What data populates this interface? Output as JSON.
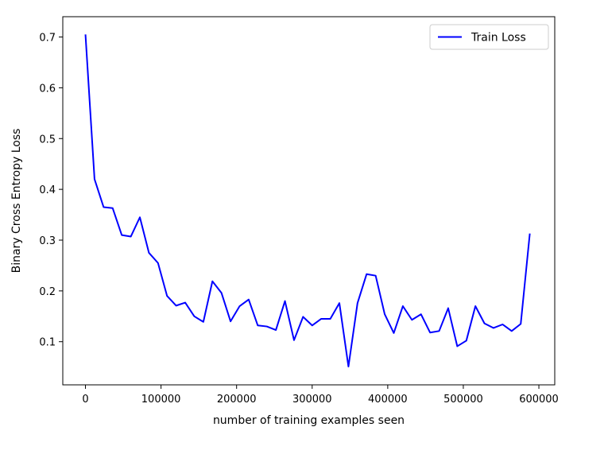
{
  "chart_data": {
    "type": "line",
    "title": "",
    "xlabel": "number of training examples seen",
    "ylabel": "Binary Cross Entropy Loss",
    "xlim": [
      -30000,
      621000
    ],
    "ylim": [
      0.015,
      0.74
    ],
    "xticks": [
      0,
      100000,
      200000,
      300000,
      400000,
      500000,
      600000
    ],
    "yticks": [
      0.1,
      0.2,
      0.3,
      0.4,
      0.5,
      0.6,
      0.7
    ],
    "grid": false,
    "legend_position": "top-right",
    "series": [
      {
        "name": "Train Loss",
        "color": "#0000ff",
        "x": [
          0,
          12000,
          24000,
          36000,
          48000,
          60000,
          72000,
          84000,
          96000,
          108000,
          120000,
          132000,
          144000,
          156000,
          168000,
          180000,
          192000,
          204000,
          216000,
          228000,
          240000,
          252000,
          264000,
          276000,
          288000,
          300000,
          312000,
          324000,
          336000,
          348000,
          360000,
          372000,
          384000,
          396000,
          408000,
          420000,
          432000,
          444000,
          456000,
          468000,
          480000,
          492000,
          504000,
          516000,
          528000,
          540000,
          552000,
          564000,
          576000,
          588000
        ],
        "y": [
          0.705,
          0.42,
          0.365,
          0.363,
          0.31,
          0.307,
          0.345,
          0.275,
          0.255,
          0.19,
          0.171,
          0.177,
          0.15,
          0.139,
          0.219,
          0.196,
          0.14,
          0.17,
          0.183,
          0.132,
          0.13,
          0.123,
          0.18,
          0.103,
          0.149,
          0.132,
          0.145,
          0.145,
          0.176,
          0.051,
          0.176,
          0.233,
          0.23,
          0.154,
          0.117,
          0.17,
          0.143,
          0.154,
          0.118,
          0.121,
          0.166,
          0.091,
          0.102,
          0.17,
          0.136,
          0.127,
          0.134,
          0.121,
          0.135,
          0.313
        ]
      }
    ]
  }
}
